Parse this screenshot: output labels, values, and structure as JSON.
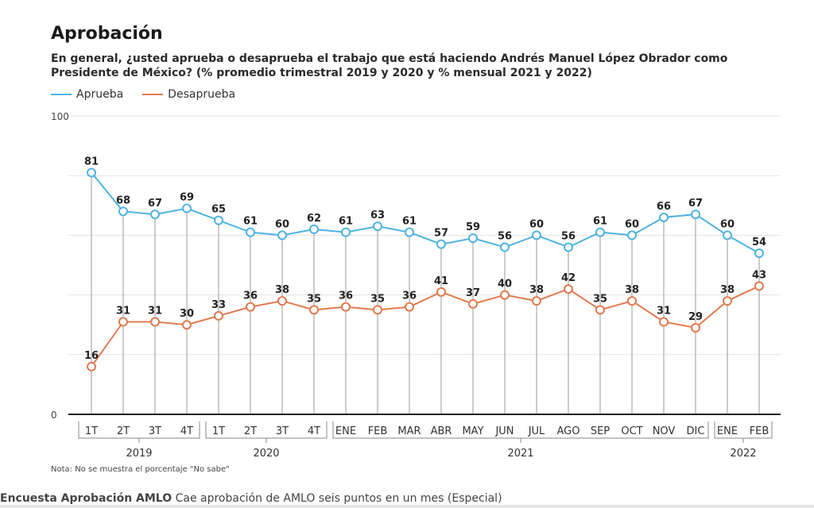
{
  "header": {
    "title": "Aprobación",
    "subtitle": "En general, ¿usted aprueba o desaprueba el trabajo que está haciendo Andrés Manuel López Obrador como Presidente de México? (% promedio trimestral 2019 y 2020 y % mensual 2021 y 2022)"
  },
  "footer": {
    "note": "Nota: No se muestra el porcentaje \"No sabe\"",
    "caption_bold": "Encuesta Aprobación AMLO",
    "caption_rest": " Cae aprobación de AMLO seis puntos en un mes (Especial)"
  },
  "chart_data": {
    "type": "line",
    "categories": [
      "1T",
      "2T",
      "3T",
      "4T",
      "1T",
      "2T",
      "3T",
      "4T",
      "ENE",
      "FEB",
      "MAR",
      "ABR",
      "MAY",
      "JUN",
      "JUL",
      "AGO",
      "SEP",
      "OCT",
      "NOV",
      "DIC",
      "ENE",
      "FEB"
    ],
    "groups": [
      {
        "label": "2019",
        "start": 0,
        "end": 3
      },
      {
        "label": "2020",
        "start": 4,
        "end": 7
      },
      {
        "label": "2021",
        "start": 8,
        "end": 19
      },
      {
        "label": "2022",
        "start": 20,
        "end": 21
      }
    ],
    "series": [
      {
        "name": "Aprueba",
        "color": "#4fb3e0",
        "values": [
          81,
          68,
          67,
          69,
          65,
          61,
          60,
          62,
          61,
          63,
          61,
          57,
          59,
          56,
          60,
          56,
          61,
          60,
          66,
          67,
          60,
          54
        ]
      },
      {
        "name": "Desaprueba",
        "color": "#e07a4f",
        "values": [
          16,
          31,
          31,
          30,
          33,
          36,
          38,
          35,
          36,
          35,
          36,
          41,
          37,
          40,
          38,
          42,
          35,
          38,
          31,
          29,
          38,
          43
        ]
      }
    ],
    "ylim": [
      0,
      100
    ],
    "yticks": [
      0,
      100
    ],
    "grid": true
  }
}
